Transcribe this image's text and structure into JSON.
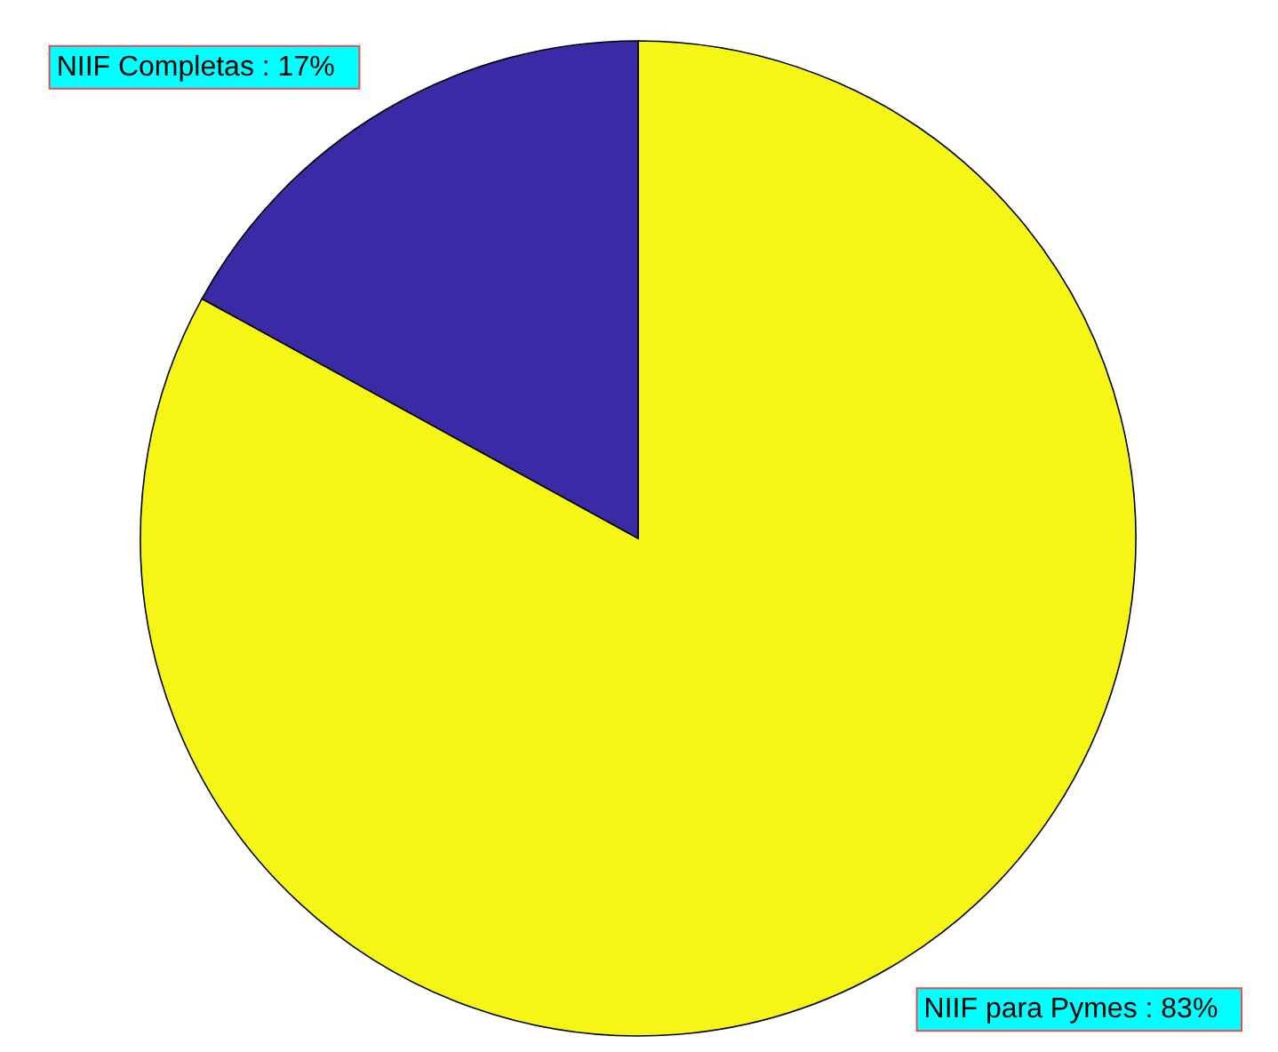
{
  "chart_data": {
    "type": "pie",
    "categories": [
      "NIIF para Pymes",
      "NIIF Completas"
    ],
    "values": [
      83,
      17
    ],
    "colors": [
      "#f5f516",
      "#3b2aa5"
    ],
    "value_labels": [
      "83%",
      "17%"
    ]
  }
}
